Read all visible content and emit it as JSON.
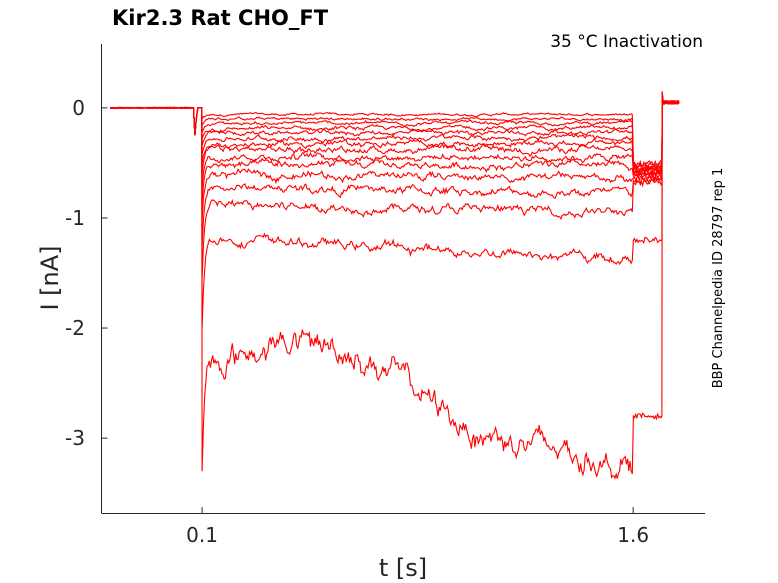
{
  "chart_data": {
    "type": "line",
    "title": "Kir2.3  Rat  CHO_FT",
    "subtitle": "35 °C  Inactivation",
    "xlabel": "t [s]",
    "ylabel": "I [nA]",
    "side_label": "BBP Channelpedia ID 28797 rep 1",
    "xlim": [
      -0.25,
      1.85
    ],
    "ylim": [
      -3.68,
      0.58
    ],
    "x_ticks": [
      {
        "value": 0.1,
        "label": "0.1"
      },
      {
        "value": 1.6,
        "label": "1.6"
      }
    ],
    "y_ticks": [
      {
        "value": 0,
        "label": "0"
      },
      {
        "value": -1,
        "label": "-1"
      },
      {
        "value": -2,
        "label": "-2"
      },
      {
        "value": -3,
        "label": "-3"
      }
    ],
    "series_color": "#ff0000",
    "series": [
      {
        "steady_start": -0.06,
        "steady_end": -0.06,
        "peak": -0.1,
        "tail": -0.5
      },
      {
        "steady_start": -0.1,
        "steady_end": -0.1,
        "peak": -0.16,
        "tail": -0.52
      },
      {
        "steady_start": -0.14,
        "steady_end": -0.14,
        "peak": -0.22,
        "tail": -0.54
      },
      {
        "steady_start": -0.19,
        "steady_end": -0.18,
        "peak": -0.28,
        "tail": -0.55
      },
      {
        "steady_start": -0.23,
        "steady_end": -0.22,
        "peak": -0.34,
        "tail": -0.56
      },
      {
        "steady_start": -0.28,
        "steady_end": -0.27,
        "peak": -0.42,
        "tail": -0.57
      },
      {
        "steady_start": -0.33,
        "steady_end": -0.32,
        "peak": -0.5,
        "tail": -0.58
      },
      {
        "steady_start": -0.38,
        "steady_end": -0.38,
        "peak": -0.6,
        "tail": -0.59
      },
      {
        "steady_start": -0.44,
        "steady_end": -0.45,
        "peak": -0.72,
        "tail": -0.6
      },
      {
        "steady_start": -0.52,
        "steady_end": -0.53,
        "peak": -0.86,
        "tail": -0.62
      },
      {
        "steady_start": -0.6,
        "steady_end": -0.64,
        "peak": -1.02,
        "tail": -0.64
      },
      {
        "steady_start": -0.72,
        "steady_end": -0.78,
        "peak": -1.25,
        "tail": -0.66
      },
      {
        "steady_start": -0.88,
        "steady_end": -0.95,
        "peak": -1.55,
        "tail": -0.68
      },
      {
        "steady_start": -1.18,
        "steady_end": -1.38,
        "peak": -2.0,
        "tail": -1.2
      },
      {
        "steady_start": -2.4,
        "steady_end": -3.25,
        "peak": -3.3,
        "tail": -2.8
      }
    ]
  }
}
